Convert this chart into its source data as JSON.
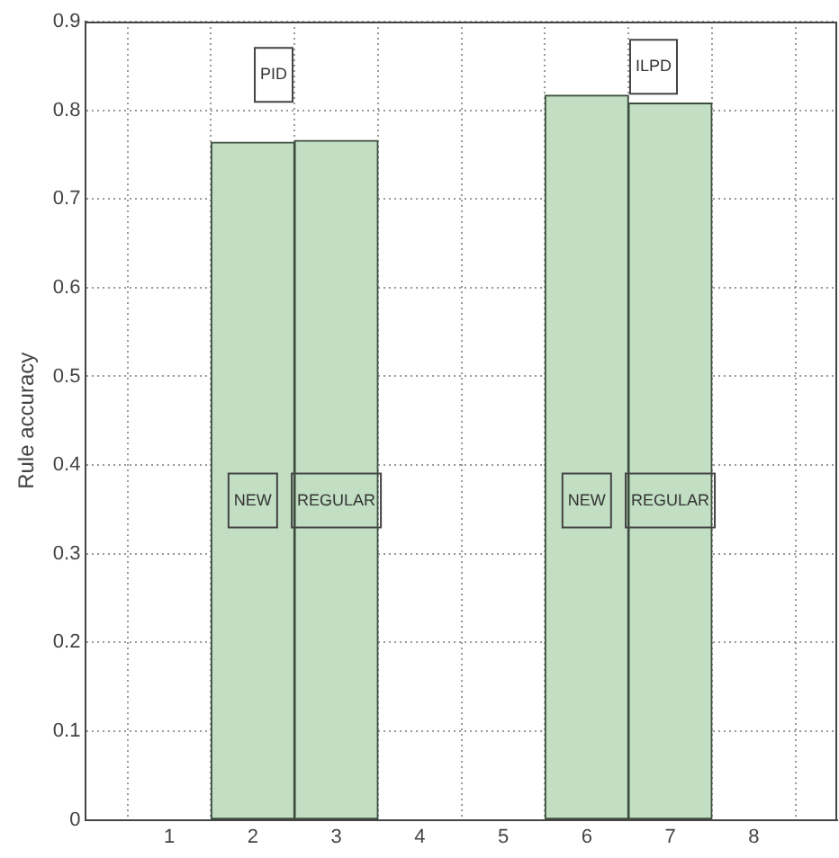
{
  "chart_data": {
    "type": "bar",
    "ylabel": "Rule accuracy",
    "x": [
      2,
      3,
      6,
      7
    ],
    "values": [
      0.764,
      0.766,
      0.817,
      0.808
    ],
    "color": "#c2dfc4",
    "xlim": [
      0,
      9
    ],
    "xticks": [
      1,
      2,
      3,
      4,
      5,
      6,
      7,
      8
    ],
    "ylim": [
      0,
      0.9
    ],
    "yticks": [
      0,
      0.1,
      0.2,
      0.3,
      0.4,
      0.5,
      0.6,
      0.7,
      0.8,
      0.9
    ],
    "grid": true,
    "legend": false,
    "annotations": [
      {
        "text": "PID",
        "x": 2.25,
        "y": 0.84
      },
      {
        "text": "ILPD",
        "x": 6.8,
        "y": 0.849
      },
      "NEW",
      "REGULAR",
      "NEW",
      "REGULAR"
    ]
  }
}
